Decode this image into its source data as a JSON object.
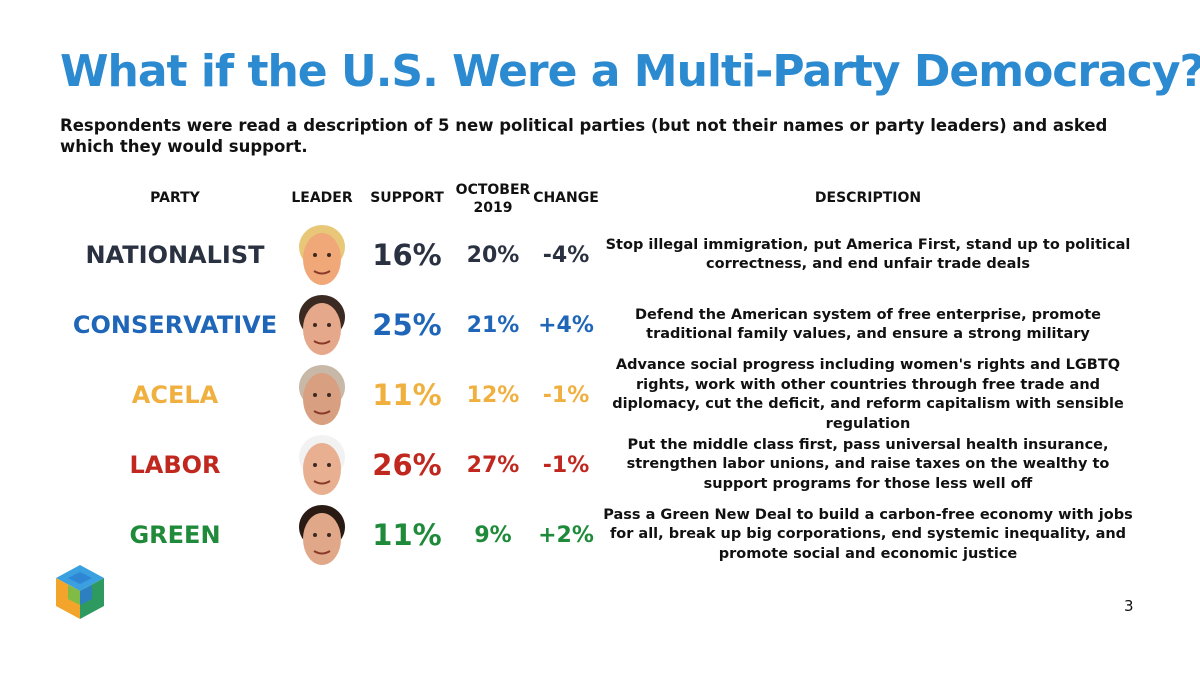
{
  "chart_data": {
    "type": "table",
    "title": "What if the U.S. Were a Multi-Party Democracy?",
    "subtitle": "Respondents were read a description of 5 new political parties (but not their names or party leaders) and asked which they would support.",
    "columns": {
      "party": "PARTY",
      "leader": "LEADER",
      "support": "SUPPORT",
      "october_line1": "OCTOBER",
      "october_line2": "2019",
      "change": "CHANGE",
      "description": "DESCRIPTION"
    },
    "rows": [
      {
        "party": "NATIONALIST",
        "color": "#2a3140",
        "support": "16%",
        "october": "20%",
        "change": "-4%",
        "description": "Stop illegal immigration, put America First, stand up to political correctness, and end unfair trade deals"
      },
      {
        "party": "CONSERVATIVE",
        "color": "#1f66b8",
        "support": "25%",
        "october": "21%",
        "change": "+4%",
        "description": "Defend the American system of free enterprise, promote traditional family values, and ensure a strong military"
      },
      {
        "party": "ACELA",
        "color": "#f0b040",
        "support": "11%",
        "october": "12%",
        "change": "-1%",
        "description": "Advance social progress including women's rights and LGBTQ rights, work with other countries through free trade and diplomacy, cut the deficit, and reform capitalism with sensible regulation"
      },
      {
        "party": "LABOR",
        "color": "#c0271f",
        "support": "26%",
        "october": "27%",
        "change": "-1%",
        "description": "Put the middle class first, pass universal health insurance, strengthen labor unions, and raise taxes on the wealthy to support programs for those less well off"
      },
      {
        "party": "GREEN",
        "color": "#1e8a3a",
        "support": "11%",
        "october": "9%",
        "change": "+2%",
        "description": "Pass a Green New Deal to build a carbon-free economy with jobs for all, break up big corporations, end systemic inequality, and promote social and economic justice"
      }
    ],
    "leader_faces": [
      {
        "icon": "leader-face-icon",
        "hair": "#e8c878",
        "skin": "#f0a878"
      },
      {
        "icon": "leader-face-icon",
        "hair": "#3a2a22",
        "skin": "#e6a88a"
      },
      {
        "icon": "leader-face-icon",
        "hair": "#c8b8a8",
        "skin": "#d8a080"
      },
      {
        "icon": "leader-face-icon",
        "hair": "#f2f2f2",
        "skin": "#e8b090"
      },
      {
        "icon": "leader-face-icon",
        "hair": "#2a1a14",
        "skin": "#e0a888"
      }
    ]
  },
  "page_number": "3",
  "logo": {
    "icon": "cube-logo-icon",
    "colors": [
      "#2b7bd0",
      "#3aa0e0",
      "#6cc04a",
      "#f2a52a",
      "#2e9a60"
    ]
  }
}
